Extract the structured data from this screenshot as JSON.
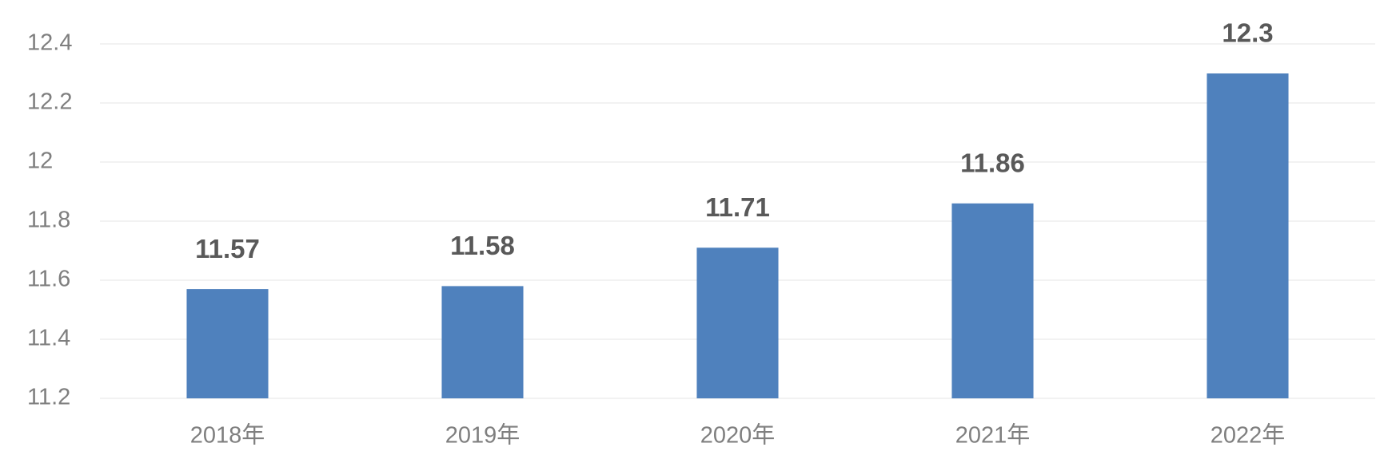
{
  "chart_data": {
    "type": "bar",
    "categories": [
      "2018年",
      "2019年",
      "2020年",
      "2021年",
      "2022年"
    ],
    "values": [
      11.57,
      11.58,
      11.71,
      11.86,
      12.3
    ],
    "color": "#4f81bd",
    "ylim": [
      11.2,
      12.4
    ],
    "yticks": [
      11.2,
      11.4,
      11.6,
      11.8,
      12,
      12.2,
      12.4
    ],
    "grid": true
  }
}
